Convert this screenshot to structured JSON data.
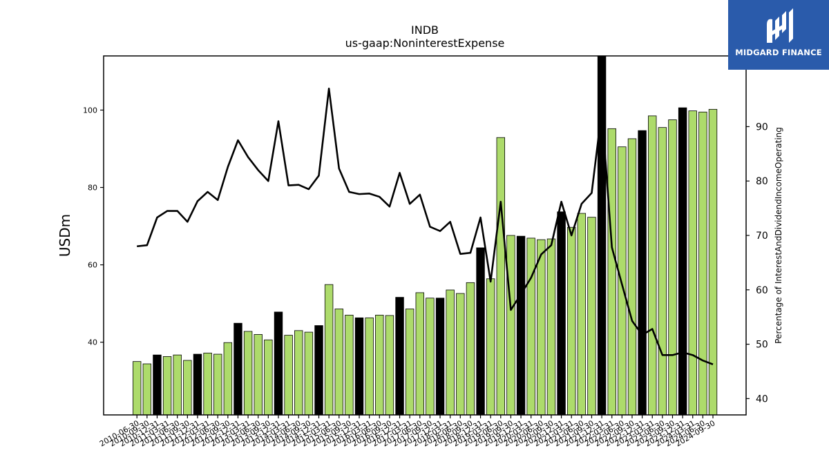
{
  "chart_data": {
    "type": "bar+line",
    "title": "INDB",
    "subtitle": "us-gaap:NoninterestExpense",
    "ylabel": "USDm",
    "y2label": "Percentage of InterestAndDividendIncomeOperating",
    "ylim": [
      21.2,
      114
    ],
    "y2lim": [
      37,
      103
    ],
    "yticks": [
      40,
      60,
      80,
      100
    ],
    "y2ticks": [
      40,
      50,
      60,
      70,
      80,
      90
    ],
    "categories": [
      "2010-06-30",
      "2010-09-30",
      "2010-12-31",
      "2011-03-31",
      "2011-06-30",
      "2011-09-30",
      "2011-12-31",
      "2012-03-31",
      "2012-06-30",
      "2012-09-30",
      "2012-12-31",
      "2013-03-31",
      "2013-06-30",
      "2013-09-30",
      "2013-12-31",
      "2014-03-31",
      "2014-06-30",
      "2014-09-30",
      "2014-12-31",
      "2015-03-31",
      "2015-06-30",
      "2015-09-30",
      "2015-12-31",
      "2016-03-31",
      "2016-06-30",
      "2016-09-30",
      "2016-12-31",
      "2017-03-31",
      "2017-06-30",
      "2017-09-30",
      "2017-12-31",
      "2018-03-31",
      "2018-06-30",
      "2018-09-30",
      "2018-12-31",
      "2019-03-31",
      "2019-06-30",
      "2019-09-30",
      "2019-12-31",
      "2020-03-31",
      "2020-06-30",
      "2020-09-30",
      "2020-12-31",
      "2021-03-31",
      "2021-06-30",
      "2021-09-30",
      "2021-12-31",
      "2022-03-31",
      "2022-06-30",
      "2022-09-30",
      "2022-12-31",
      "2023-03-31",
      "2023-06-30",
      "2023-09-30",
      "2023-12-31",
      "2024-03-31",
      "2024-06-30",
      "2024-09-30"
    ],
    "series": [
      {
        "kind": "bar",
        "values": [
          35.0,
          34.4,
          36.7,
          36.3,
          36.7,
          35.3,
          36.9,
          37.2,
          36.9,
          39.9,
          44.9,
          42.8,
          42.0,
          40.6,
          47.8,
          41.8,
          43.0,
          42.6,
          44.3,
          54.9,
          48.6,
          47.0,
          46.3,
          46.3,
          47.0,
          46.9,
          51.6,
          48.6,
          52.8,
          51.4,
          51.4,
          53.5,
          52.6,
          55.4,
          64.4,
          56.4,
          92.9,
          67.6,
          67.4,
          66.9,
          66.5,
          66.7,
          73.7,
          69.7,
          73.3,
          72.3,
          114.0,
          95.2,
          90.5,
          92.6,
          94.7,
          98.5,
          95.5,
          97.5,
          100.6,
          99.8,
          99.5,
          100.2
        ],
        "highlight": [
          false,
          false,
          true,
          false,
          false,
          false,
          true,
          false,
          false,
          false,
          true,
          false,
          false,
          false,
          true,
          false,
          false,
          false,
          true,
          false,
          false,
          false,
          true,
          false,
          false,
          false,
          true,
          false,
          false,
          false,
          true,
          false,
          false,
          false,
          true,
          false,
          false,
          false,
          true,
          false,
          false,
          false,
          true,
          false,
          false,
          false,
          true,
          false,
          false,
          false,
          true,
          false,
          false,
          false,
          true,
          false,
          false,
          false
        ],
        "color": "#addb6b",
        "highlight_color": "#000000"
      },
      {
        "kind": "line",
        "axis": "right",
        "color": "#000000",
        "values": [
          68.0,
          68.2,
          73.3,
          74.5,
          74.5,
          72.5,
          76.3,
          78.0,
          76.5,
          82.6,
          87.5,
          84.4,
          82.0,
          80.0,
          91.0,
          79.2,
          79.3,
          78.5,
          81.0,
          97.0,
          82.3,
          78.0,
          77.6,
          77.7,
          77.1,
          75.3,
          81.5,
          75.8,
          77.5,
          71.6,
          70.8,
          72.5,
          66.6,
          66.8,
          73.3,
          61.5,
          76.2,
          56.3,
          59.2,
          62.2,
          66.5,
          68.2,
          76.2,
          70.0,
          75.8,
          77.8,
          93.0,
          67.8,
          61.0,
          54.3,
          51.7,
          52.8,
          48.0,
          48.0,
          48.5,
          48.0,
          47.0,
          46.3
        ]
      }
    ]
  },
  "logo": {
    "text": "MIDGARD FINANCE",
    "background": "#2a5bab"
  }
}
